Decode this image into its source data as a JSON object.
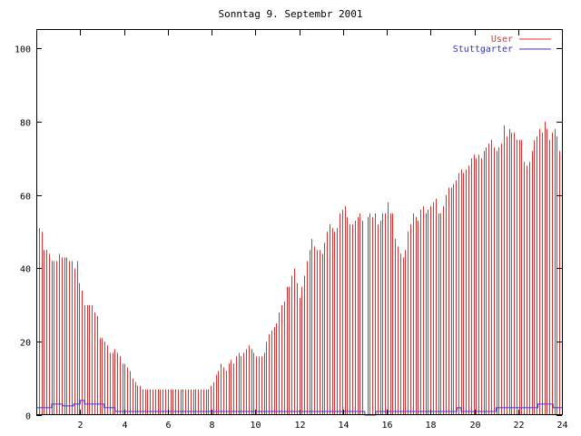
{
  "chart_data": {
    "type": "bar",
    "title": "Sonntag 9. Septembr 2001",
    "xlabel": "",
    "ylabel": "",
    "xlim": [
      0,
      24
    ],
    "ylim": [
      0,
      105
    ],
    "x_ticks": [
      "2",
      "4",
      "6",
      "8",
      "10",
      "12",
      "14",
      "16",
      "18",
      "20",
      "22",
      "24"
    ],
    "y_ticks": [
      "0",
      "20",
      "40",
      "60",
      "80",
      "100"
    ],
    "legend_position": "top-right",
    "series": [
      {
        "name": "User",
        "style": "impulses",
        "color": "#e03030",
        "values": [
          52,
          51,
          50,
          45,
          45,
          44,
          42,
          42,
          42,
          44,
          43,
          43,
          43,
          42,
          42,
          40,
          42,
          36,
          34,
          30,
          30,
          30,
          30,
          28,
          27,
          21,
          21,
          20,
          19,
          17,
          17,
          18,
          17,
          16,
          14,
          14,
          13,
          12,
          10,
          9,
          8,
          8,
          7,
          7,
          7,
          7,
          7,
          7,
          7,
          7,
          7,
          7,
          7,
          7,
          7,
          7,
          7,
          7,
          7,
          7,
          7,
          7,
          7,
          7,
          7,
          7,
          7,
          7,
          7,
          8,
          9,
          11,
          12,
          14,
          13,
          12,
          14,
          15,
          14,
          16,
          17,
          16,
          17,
          18,
          19,
          18,
          17,
          16,
          16,
          16,
          17,
          20,
          22,
          23,
          24,
          25,
          28,
          30,
          31,
          35,
          35,
          38,
          40,
          36,
          32,
          35,
          38,
          42,
          45,
          48,
          46,
          45,
          45,
          44,
          47,
          50,
          52,
          51,
          50,
          51,
          55,
          56,
          57,
          54,
          52,
          52,
          53,
          54,
          55,
          53,
          0,
          54,
          55,
          54,
          55,
          52,
          53,
          55,
          55,
          58,
          55,
          55,
          48,
          46,
          44,
          43,
          45,
          50,
          52,
          55,
          54,
          53,
          56,
          57,
          55,
          56,
          57,
          58,
          59,
          55,
          55,
          57,
          60,
          62,
          62,
          63,
          64,
          66,
          67,
          66,
          67,
          68,
          70,
          71,
          70,
          71,
          70,
          72,
          73,
          74,
          75,
          73,
          72,
          73,
          74,
          79,
          76,
          78,
          77,
          77,
          75,
          75,
          75,
          69,
          68,
          69,
          72,
          75,
          76,
          78,
          77,
          80,
          78,
          75,
          77,
          78,
          76,
          72,
          73
        ]
      },
      {
        "name": "Stuttgarter",
        "style": "steps",
        "color": "#3333cc",
        "x": [
          0,
          0.7,
          1.2,
          1.7,
          2.0,
          2.2,
          3.1,
          3.6,
          15.0,
          15.2,
          15.5,
          19.2,
          19.4,
          21.0,
          22.9,
          23.6,
          24.0
        ],
        "values": [
          2,
          3,
          2.5,
          3,
          4,
          3,
          2,
          1,
          0,
          0,
          1,
          2,
          1,
          2,
          3,
          2,
          2
        ]
      }
    ]
  }
}
